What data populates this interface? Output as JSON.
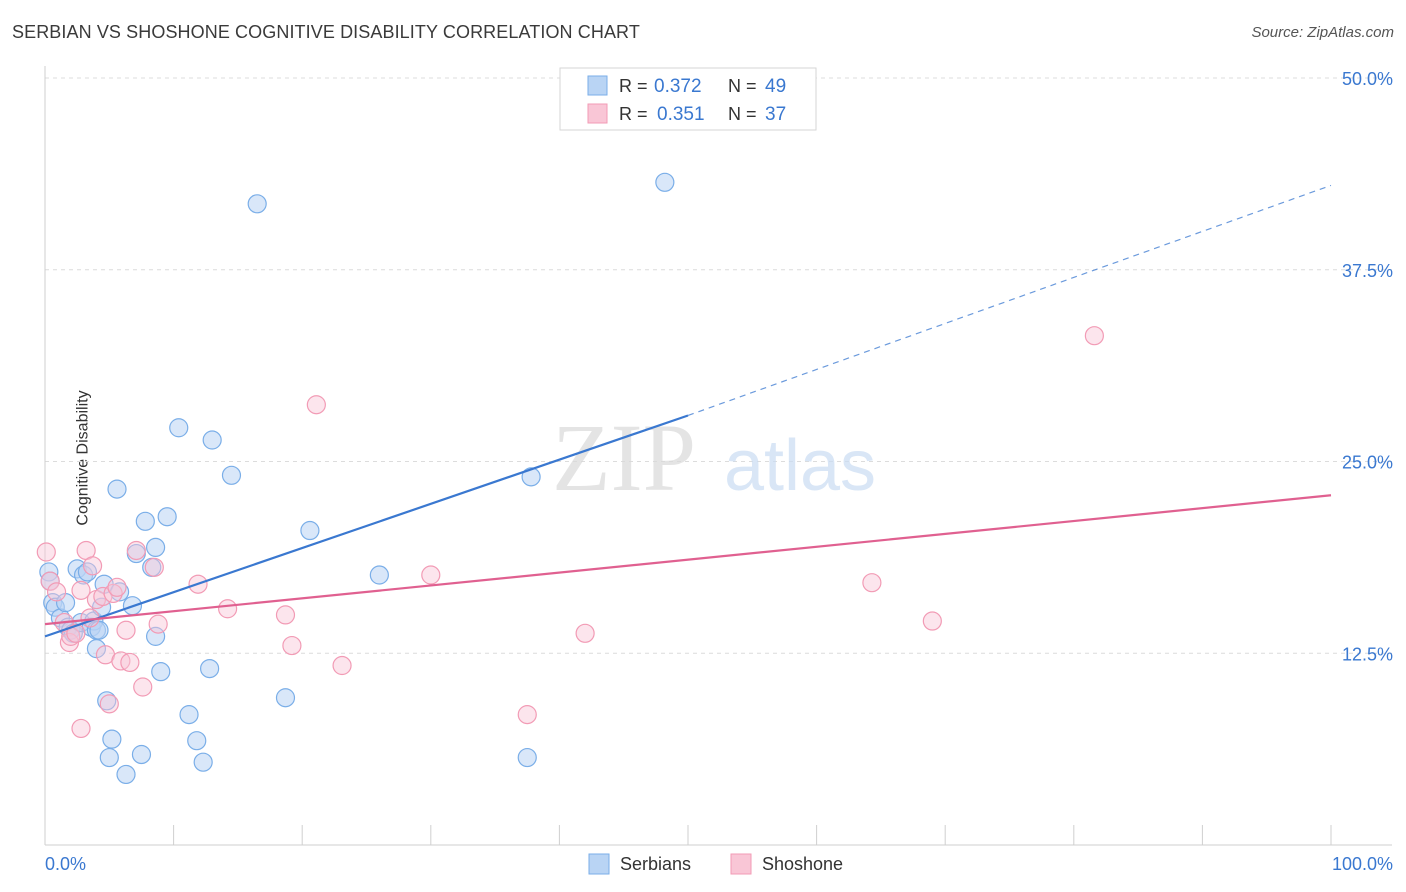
{
  "header": {
    "title": "SERBIAN VS SHOSHONE COGNITIVE DISABILITY CORRELATION CHART",
    "source": "Source: ZipAtlas.com"
  },
  "watermark": {
    "zip": "ZIP",
    "atlas": "atlas"
  },
  "legend_top": {
    "r_label": "R =",
    "n_label": "N =",
    "rows": [
      {
        "r": "0.372",
        "n": "49",
        "color": "#7aaee8"
      },
      {
        "r": "0.351",
        "n": "37",
        "color": "#f29bb5"
      }
    ]
  },
  "legend_bottom": [
    "Serbians",
    "Shoshone"
  ],
  "colors": {
    "blue": "#3a78d0",
    "pink": "#e06090",
    "blue_fill": "#a8c8f0",
    "pink_fill": "#f8bcd0",
    "axis_text": "#3a78d0"
  },
  "chart_data": {
    "type": "scatter",
    "xlabel": "",
    "ylabel": "Cognitive Disability",
    "xlim": [
      0,
      100
    ],
    "ylim": [
      0,
      50
    ],
    "x_tick_labels": [
      "0.0%",
      "100.0%"
    ],
    "y_ticks": [
      12.5,
      25.0,
      37.5,
      50.0
    ],
    "y_tick_labels": [
      "12.5%",
      "25.0%",
      "37.5%",
      "50.0%"
    ],
    "grid": true,
    "legend_position": "top-center",
    "series": [
      {
        "name": "Serbians",
        "color": "#7aaee8",
        "trend": {
          "x": [
            0,
            50
          ],
          "y": [
            13.6,
            28.0
          ],
          "dashed_extension_to": [
            100,
            43.0
          ]
        },
        "points": [
          [
            0.3,
            17.8
          ],
          [
            0.4,
            17.2
          ],
          [
            0.6,
            15.8
          ],
          [
            0.8,
            15.5
          ],
          [
            1.2,
            14.8
          ],
          [
            1.6,
            15.8
          ],
          [
            1.8,
            14.2
          ],
          [
            2.0,
            14.0
          ],
          [
            2.2,
            13.8
          ],
          [
            2.5,
            18.0
          ],
          [
            2.8,
            14.5
          ],
          [
            3.0,
            17.6
          ],
          [
            3.3,
            17.8
          ],
          [
            3.6,
            14.2
          ],
          [
            3.8,
            14.6
          ],
          [
            4.0,
            14.0
          ],
          [
            4.0,
            12.8
          ],
          [
            4.2,
            14.0
          ],
          [
            4.4,
            15.5
          ],
          [
            4.6,
            17.0
          ],
          [
            4.8,
            9.4
          ],
          [
            5.0,
            5.7
          ],
          [
            5.2,
            6.9
          ],
          [
            5.6,
            23.2
          ],
          [
            5.8,
            16.5
          ],
          [
            6.3,
            4.6
          ],
          [
            6.8,
            15.6
          ],
          [
            7.1,
            19.0
          ],
          [
            7.5,
            5.9
          ],
          [
            7.8,
            21.1
          ],
          [
            8.3,
            18.1
          ],
          [
            8.6,
            19.4
          ],
          [
            8.6,
            13.6
          ],
          [
            9.0,
            11.3
          ],
          [
            9.5,
            21.4
          ],
          [
            10.4,
            27.2
          ],
          [
            11.2,
            8.5
          ],
          [
            11.8,
            6.8
          ],
          [
            12.3,
            5.4
          ],
          [
            12.8,
            11.5
          ],
          [
            13.0,
            26.4
          ],
          [
            14.5,
            24.1
          ],
          [
            16.5,
            41.8
          ],
          [
            18.7,
            9.6
          ],
          [
            20.6,
            20.5
          ],
          [
            26.0,
            17.6
          ],
          [
            37.5,
            5.7
          ],
          [
            37.8,
            24.0
          ],
          [
            48.2,
            43.2
          ]
        ]
      },
      {
        "name": "Shoshone",
        "color": "#f29bb5",
        "trend": {
          "x": [
            0,
            100
          ],
          "y": [
            14.4,
            22.8
          ]
        },
        "points": [
          [
            0.1,
            19.1
          ],
          [
            0.4,
            17.2
          ],
          [
            0.9,
            16.5
          ],
          [
            1.5,
            14.5
          ],
          [
            1.9,
            13.2
          ],
          [
            2.0,
            13.6
          ],
          [
            2.4,
            13.8
          ],
          [
            2.8,
            16.6
          ],
          [
            2.8,
            7.6
          ],
          [
            3.2,
            19.2
          ],
          [
            3.5,
            14.8
          ],
          [
            3.7,
            18.2
          ],
          [
            4.0,
            16.0
          ],
          [
            4.5,
            16.2
          ],
          [
            4.7,
            12.4
          ],
          [
            5.0,
            9.2
          ],
          [
            5.3,
            16.4
          ],
          [
            5.6,
            16.8
          ],
          [
            5.9,
            12.0
          ],
          [
            6.3,
            14.0
          ],
          [
            6.6,
            11.9
          ],
          [
            7.1,
            19.2
          ],
          [
            7.6,
            10.3
          ],
          [
            8.5,
            18.1
          ],
          [
            8.8,
            14.4
          ],
          [
            11.9,
            17.0
          ],
          [
            14.2,
            15.4
          ],
          [
            18.7,
            15.0
          ],
          [
            19.2,
            13.0
          ],
          [
            21.1,
            28.7
          ],
          [
            23.1,
            11.7
          ],
          [
            30.0,
            17.6
          ],
          [
            37.5,
            8.5
          ],
          [
            42.0,
            13.8
          ],
          [
            64.3,
            17.1
          ],
          [
            69.0,
            14.6
          ],
          [
            81.6,
            33.2
          ]
        ]
      }
    ]
  }
}
